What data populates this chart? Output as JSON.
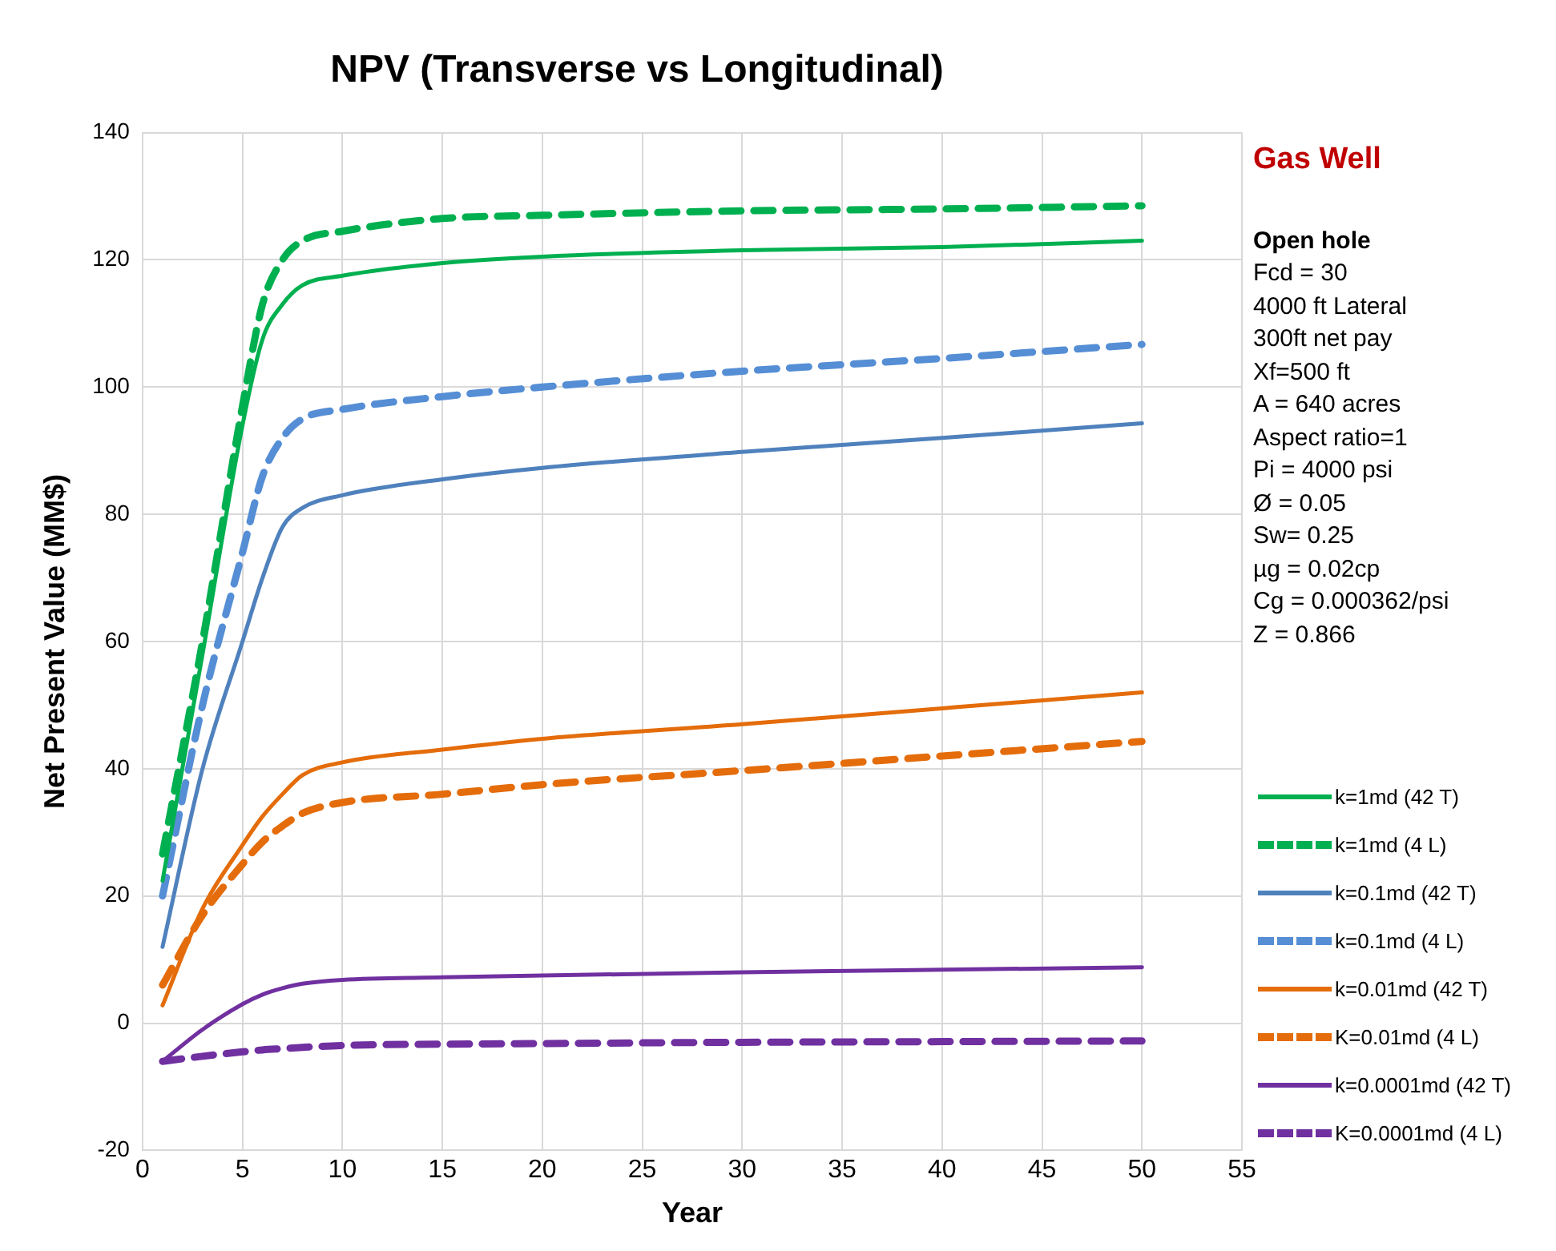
{
  "chart_data": {
    "type": "line",
    "title": "NPV (Transverse vs Longitudinal)",
    "xlabel": "Year",
    "ylabel": "Net Present Value (MM$)",
    "xlim": [
      0,
      55
    ],
    "xticks": [
      0,
      5,
      10,
      15,
      20,
      25,
      30,
      35,
      40,
      45,
      50,
      55
    ],
    "ylim": [
      -20,
      140
    ],
    "yticks": [
      -20,
      0,
      20,
      40,
      60,
      80,
      100,
      120,
      140
    ],
    "grid": true,
    "legend": "right",
    "marker": "none",
    "x": [
      1,
      3,
      5,
      6,
      7,
      8,
      10,
      15,
      20,
      30,
      40,
      50
    ],
    "series": [
      {
        "name": "k=1md (42 T)",
        "color": "#00b050",
        "line_style": "solid",
        "values": [
          22.4,
          58,
          94,
          107.5,
          113,
          116,
          117.5,
          119.5,
          120.5,
          121.5,
          122,
          123
        ]
      },
      {
        "name": "k=1md (4 L)",
        "color": "#00b050",
        "line_style": "dashed",
        "values": [
          26.6,
          60,
          97,
          113,
          120,
          123,
          124.5,
          126.5,
          127,
          127.7,
          128,
          128.5
        ]
      },
      {
        "name": "k=0.1md (42 T)",
        "color": "#4f81bd",
        "line_style": "solid",
        "values": [
          12,
          40,
          60,
          70,
          78,
          81,
          83,
          85.5,
          87.3,
          89.8,
          92,
          94.3
        ]
      },
      {
        "name": "k=0.1md (4 L)",
        "color": "#558ed5",
        "line_style": "dashed",
        "values": [
          20,
          50,
          74,
          86,
          92,
          95,
          96.5,
          98.5,
          100,
          102.5,
          104.5,
          106.7
        ]
      },
      {
        "name": "k=0.01md (42 T)",
        "color": "#e46c0a",
        "line_style": "solid",
        "values": [
          2.8,
          18,
          28,
          32.5,
          36,
          39,
          41,
          43,
          44.7,
          47,
          49.5,
          52
        ]
      },
      {
        "name": "K=0.01md (4 L)",
        "color": "#e46c0a",
        "line_style": "dashed",
        "values": [
          6,
          17,
          25,
          28.5,
          31,
          33,
          34.7,
          36,
          37.5,
          39.7,
          42,
          44.3
        ]
      },
      {
        "name": "k=0.0001md (42 T)",
        "color": "#7030a0",
        "line_style": "solid",
        "values": [
          -6,
          -1,
          3,
          4.5,
          5.5,
          6.2,
          6.8,
          7.2,
          7.5,
          8,
          8.4,
          8.8
        ]
      },
      {
        "name": "K=0.0001md (4 L)",
        "color": "#7030a0",
        "line_style": "dashed",
        "values": [
          -6,
          -5.2,
          -4.5,
          -4.2,
          -4,
          -3.8,
          -3.5,
          -3.3,
          -3.2,
          -3,
          -2.9,
          -2.8
        ]
      }
    ],
    "annotations": [
      "Gas Well",
      "Open hole",
      "Fcd = 30",
      "4000 ft Lateral",
      "300ft net pay",
      "Xf=500 ft",
      "A = 640 acres",
      "Aspect ratio=1",
      "Pi = 4000 psi",
      "Ø = 0.05",
      "Sw= 0.25",
      "µg = 0.02cp",
      "Cg = 0.000362/psi",
      "Z = 0.866"
    ]
  }
}
